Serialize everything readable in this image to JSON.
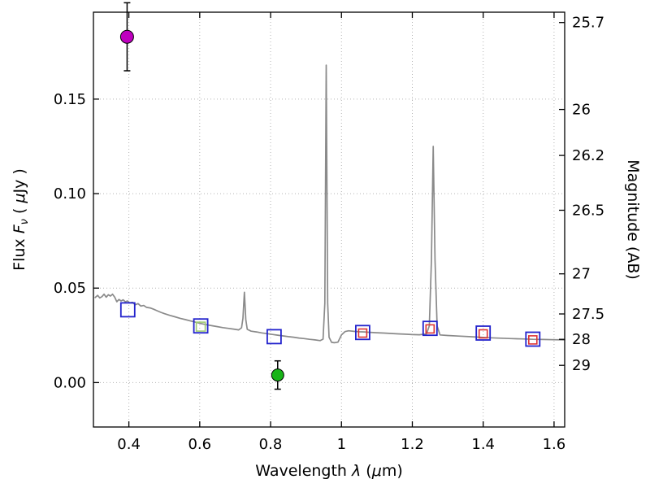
{
  "labels": {
    "xlabel_word": "Wavelength ",
    "xlabel_lambda": "λ",
    "xlabel_unit_pre": " (",
    "xlabel_mu": "μ",
    "xlabel_unit_post": "m)",
    "ylabel_word": "Flux ",
    "ylabel_f": "F",
    "ylabel_nu": "ν",
    "ylabel_unit_pre": " ( ",
    "ylabel_mu": "μ",
    "ylabel_unit_post": "Jy )",
    "right_label": "Magnitude (AB)"
  },
  "chart_data": {
    "type": "line",
    "title": "",
    "xlabel": "Wavelength λ (μm)",
    "ylabel": "Flux Fν ( μJy )",
    "ylabel_right": "Magnitude (AB)",
    "xlim": [
      0.3,
      1.63
    ],
    "ylim": [
      -0.0235,
      0.196
    ],
    "grid": {
      "x": true,
      "y_left": true,
      "style": "dotted",
      "color": "#b4b4b4"
    },
    "frame_color": "#000000",
    "xticks": {
      "values": [
        0.4,
        0.6,
        0.8,
        1.0,
        1.2,
        1.4,
        1.6
      ],
      "labels": [
        "0.4",
        "0.6",
        "0.8",
        "1",
        "1.2",
        "1.4",
        "1.6"
      ]
    },
    "yticks_left": {
      "values": [
        0.0,
        0.05,
        0.1,
        0.15
      ],
      "labels": [
        "0.00",
        "0.05",
        "0.10",
        "0.15"
      ]
    },
    "yticks_right": {
      "zeropoint_ab": 23.9,
      "values": [
        25.7,
        26,
        26.2,
        26.5,
        27,
        27.5,
        28,
        29
      ],
      "labels": [
        "25.7",
        "26",
        "26.2",
        "26.5",
        "27",
        "27.5",
        "28",
        "29"
      ]
    },
    "series": [
      {
        "name": "model-spectrum",
        "type": "line",
        "color": "#8a8a8a",
        "width": 1.7,
        "points": [
          [
            0.305,
            0.045
          ],
          [
            0.312,
            0.0462
          ],
          [
            0.318,
            0.0448
          ],
          [
            0.324,
            0.0455
          ],
          [
            0.33,
            0.0468
          ],
          [
            0.336,
            0.0452
          ],
          [
            0.342,
            0.0465
          ],
          [
            0.348,
            0.0458
          ],
          [
            0.354,
            0.0468
          ],
          [
            0.36,
            0.0452
          ],
          [
            0.366,
            0.0428
          ],
          [
            0.372,
            0.044
          ],
          [
            0.378,
            0.0432
          ],
          [
            0.384,
            0.0438
          ],
          [
            0.39,
            0.0428
          ],
          [
            0.396,
            0.0432
          ],
          [
            0.402,
            0.0422
          ],
          [
            0.41,
            0.0425
          ],
          [
            0.418,
            0.0412
          ],
          [
            0.426,
            0.0418
          ],
          [
            0.434,
            0.0405
          ],
          [
            0.442,
            0.0408
          ],
          [
            0.45,
            0.0398
          ],
          [
            0.46,
            0.0395
          ],
          [
            0.47,
            0.0388
          ],
          [
            0.48,
            0.038
          ],
          [
            0.49,
            0.0372
          ],
          [
            0.5,
            0.0365
          ],
          [
            0.515,
            0.0356
          ],
          [
            0.53,
            0.0348
          ],
          [
            0.545,
            0.034
          ],
          [
            0.56,
            0.0333
          ],
          [
            0.575,
            0.0326
          ],
          [
            0.59,
            0.0319
          ],
          [
            0.605,
            0.0312
          ],
          [
            0.62,
            0.0306
          ],
          [
            0.635,
            0.0301
          ],
          [
            0.65,
            0.0296
          ],
          [
            0.665,
            0.0291
          ],
          [
            0.68,
            0.0287
          ],
          [
            0.695,
            0.0283
          ],
          [
            0.71,
            0.0279
          ],
          [
            0.718,
            0.029
          ],
          [
            0.722,
            0.034
          ],
          [
            0.726,
            0.0478
          ],
          [
            0.73,
            0.0335
          ],
          [
            0.734,
            0.0282
          ],
          [
            0.745,
            0.0272
          ],
          [
            0.76,
            0.0268
          ],
          [
            0.775,
            0.0263
          ],
          [
            0.79,
            0.0259
          ],
          [
            0.805,
            0.0255
          ],
          [
            0.82,
            0.0251
          ],
          [
            0.835,
            0.0247
          ],
          [
            0.85,
            0.0243
          ],
          [
            0.865,
            0.024
          ],
          [
            0.88,
            0.0236
          ],
          [
            0.895,
            0.0233
          ],
          [
            0.91,
            0.0229
          ],
          [
            0.925,
            0.0226
          ],
          [
            0.94,
            0.0222
          ],
          [
            0.948,
            0.023
          ],
          [
            0.953,
            0.042
          ],
          [
            0.957,
            0.168
          ],
          [
            0.961,
            0.042
          ],
          [
            0.965,
            0.024
          ],
          [
            0.972,
            0.0213
          ],
          [
            0.98,
            0.0211
          ],
          [
            0.99,
            0.0214
          ],
          [
            1.0,
            0.0252
          ],
          [
            1.01,
            0.027
          ],
          [
            1.02,
            0.0274
          ],
          [
            1.035,
            0.0271
          ],
          [
            1.05,
            0.0269
          ],
          [
            1.065,
            0.0268
          ],
          [
            1.08,
            0.0266
          ],
          [
            1.1,
            0.0264
          ],
          [
            1.12,
            0.0262
          ],
          [
            1.14,
            0.026
          ],
          [
            1.16,
            0.0258
          ],
          [
            1.18,
            0.0256
          ],
          [
            1.2,
            0.0254
          ],
          [
            1.22,
            0.0253
          ],
          [
            1.24,
            0.0258
          ],
          [
            1.248,
            0.03
          ],
          [
            1.254,
            0.065
          ],
          [
            1.259,
            0.125
          ],
          [
            1.264,
            0.065
          ],
          [
            1.27,
            0.03
          ],
          [
            1.278,
            0.0252
          ],
          [
            1.3,
            0.0249
          ],
          [
            1.33,
            0.0246
          ],
          [
            1.36,
            0.0243
          ],
          [
            1.39,
            0.024
          ],
          [
            1.42,
            0.0237
          ],
          [
            1.45,
            0.0235
          ],
          [
            1.48,
            0.0233
          ],
          [
            1.51,
            0.0231
          ],
          [
            1.54,
            0.0229
          ],
          [
            1.57,
            0.0228
          ],
          [
            1.6,
            0.0227
          ],
          [
            1.63,
            0.0226
          ]
        ]
      },
      {
        "name": "observed-photometry-square",
        "type": "square-open",
        "color": "#2222cc",
        "size": 17,
        "stroke": 1.8,
        "points": [
          [
            0.397,
            0.0385
          ],
          [
            0.603,
            0.03
          ],
          [
            0.81,
            0.0243
          ],
          [
            1.06,
            0.0265
          ],
          [
            1.25,
            0.0287
          ],
          [
            1.4,
            0.0262
          ],
          [
            1.54,
            0.023
          ]
        ]
      },
      {
        "name": "model-photometry-square-green",
        "type": "square-open",
        "color": "#9ecb72",
        "size": 11,
        "stroke": 1.6,
        "points": [
          [
            0.603,
            0.0296
          ]
        ]
      },
      {
        "name": "model-photometry-square-red",
        "type": "square-open",
        "color": "#dd3333",
        "size": 10,
        "stroke": 1.6,
        "points": [
          [
            1.06,
            0.0262
          ],
          [
            1.25,
            0.0284
          ],
          [
            1.4,
            0.0258
          ],
          [
            1.54,
            0.0226
          ]
        ]
      },
      {
        "name": "upper-limit-point-magenta",
        "type": "circle",
        "color": "#bf00bf",
        "edge": "#000000",
        "r": 8,
        "points": [
          [
            0.395,
            0.183
          ]
        ],
        "yerr": [
          0.018
        ]
      },
      {
        "name": "detection-point-green",
        "type": "circle",
        "color": "#18b418",
        "edge": "#000000",
        "r": 7.5,
        "points": [
          [
            0.82,
            0.004
          ]
        ],
        "yerr": [
          0.0075
        ]
      }
    ]
  }
}
